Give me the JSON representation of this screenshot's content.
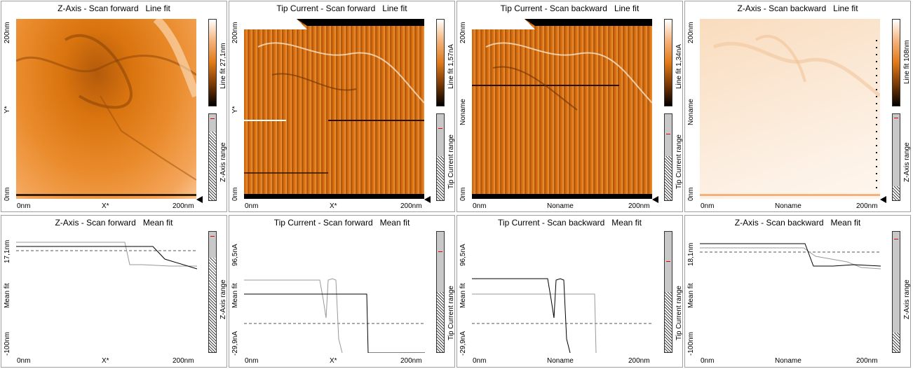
{
  "panels": [
    {
      "title": "Z-Axis - Scan forward   Line fit",
      "ytop": "200nm",
      "ymid": "Y*",
      "ybot": "0nm",
      "xleft": "0nm",
      "xmid": "X*",
      "xright": "200nm",
      "cbar": "Line fit 27,1nm",
      "range": "Z-Axis range"
    },
    {
      "title": "Tip Current - Scan forward   Line fit",
      "ytop": "200nm",
      "ymid": "Y*",
      "ybot": "0nm",
      "xleft": "0nm",
      "xmid": "X*",
      "xright": "200nm",
      "cbar": "Line fit 1,57nA",
      "range": "Tip Current range"
    },
    {
      "title": "Tip Current - Scan backward   Line fit",
      "ytop": "200nm",
      "ymid": "Noname",
      "ybot": "0nm",
      "xleft": "0nm",
      "xmid": "Noname",
      "xright": "200nm",
      "cbar": "Line fit 1,34nA",
      "range": "Tip Current range"
    },
    {
      "title": "Z-Axis - Scan backward   Line fit",
      "ytop": "200nm",
      "ymid": "Noname",
      "ybot": "0nm",
      "xleft": "0nm",
      "xmid": "Noname",
      "xright": "200nm",
      "cbar": "Line fit 108nm",
      "range": "Z-Axis range"
    }
  ],
  "profiles": [
    {
      "title": "Z-Axis - Scan forward   Mean fit",
      "ytop": "17,1nm",
      "ymid": "Mean fit",
      "ybot": "-100nm",
      "xleft": "0nm",
      "xmid": "X*",
      "xright": "200nm",
      "range": "Z-Axis range"
    },
    {
      "title": "Tip Current - Scan forward   Mean fit",
      "ytop": "96,5nA",
      "ymid": "Mean fit",
      "ybot": "-29,9nA",
      "xleft": "0nm",
      "xmid": "X*",
      "xright": "200nm",
      "range": "Tip Current range"
    },
    {
      "title": "Tip Current - Scan backward   Mean fit",
      "ytop": "96,5nA",
      "ymid": "Mean fit",
      "ybot": "-29,9nA",
      "xleft": "0nm",
      "xmid": "Noname",
      "xright": "200nm",
      "range": "Tip Current range"
    },
    {
      "title": "Z-Axis - Scan backward   Mean fit",
      "ytop": "18,1nm",
      "ymid": "Mean fit",
      "ybot": "-100nm",
      "xleft": "0nm",
      "xmid": "Noname",
      "xright": "200nm",
      "range": "Z-Axis range"
    }
  ],
  "colors": {
    "orange": "#e07a1a",
    "dark": "#3a1d05",
    "light": "#fbe9d6"
  }
}
